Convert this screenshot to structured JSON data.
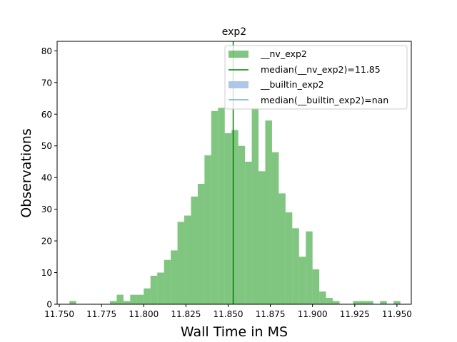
{
  "chart_data": {
    "type": "bar",
    "title": "exp2",
    "xlabel": "Wall Time in MS",
    "ylabel": "Observations",
    "xlim": [
      11.7487,
      11.9585
    ],
    "ylim": [
      0,
      83
    ],
    "xticks": [
      "11.750",
      "11.775",
      "11.800",
      "11.825",
      "11.850",
      "11.875",
      "11.900",
      "11.925",
      "11.950"
    ],
    "yticks": [
      "0",
      "10",
      "20",
      "30",
      "40",
      "50",
      "60",
      "70",
      "80"
    ],
    "bin_width": 0.004,
    "bin_start": 11.756,
    "series": [
      {
        "name": "__nv_exp2",
        "color": "#2ca02c",
        "opacity": 0.6,
        "values": [
          1,
          0,
          0,
          0,
          0,
          0,
          1,
          3,
          1,
          3,
          3,
          5,
          9,
          10,
          14,
          17,
          26,
          28,
          34,
          38,
          47,
          61,
          62,
          54,
          55,
          50,
          45,
          62,
          42,
          58,
          48,
          35,
          29,
          24,
          15,
          23,
          11,
          4,
          2,
          1,
          0,
          0,
          1,
          1,
          1,
          0,
          1,
          0,
          1
        ]
      },
      {
        "name": "__builtin_exp2",
        "color": "#aec7e8",
        "values": []
      }
    ],
    "medians": [
      {
        "name": "median(__nv_exp2)=11.85",
        "value": 11.853,
        "color": "#008000"
      },
      {
        "name": "median(__builtin_exp2)=nan",
        "value": null,
        "color": "#6fa8dc"
      }
    ],
    "legend": {
      "position": "top-right",
      "entries": [
        "__nv_exp2",
        "median(__nv_exp2)=11.85",
        "__builtin_exp2",
        "median(__builtin_exp2)=nan"
      ]
    }
  }
}
